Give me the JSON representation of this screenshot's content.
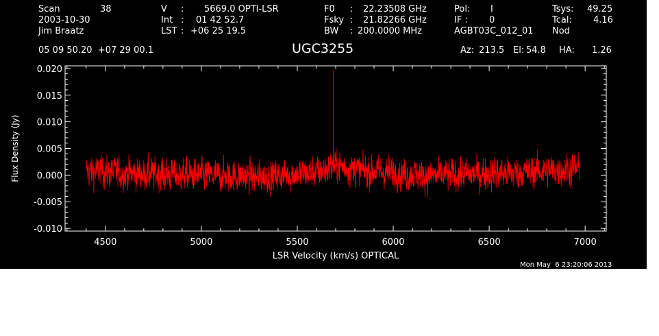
{
  "header": {
    "scan_label": "Scan",
    "scan_value": "38",
    "date": "2003-10-30",
    "observer": "Jim Braatz",
    "velocity_label": "V",
    "velocity_value": "5669.0 OPTI-LSR",
    "int_label": "Int",
    "int_value": "01 42 52.7",
    "lst_label": "LST",
    "lst_value": "+06 25 19.5",
    "f0_label": "F0",
    "f0_value": "22.23508 GHz",
    "fsky_label": "Fsky",
    "fsky_value": "21.82266 GHz",
    "bw_label": "BW",
    "bw_value": "200.0000 MHz",
    "pol_label": "Pol:",
    "pol_value": "I",
    "if_label": "IF :",
    "if_value": "0",
    "project": "AGBT03C_012_01",
    "tsys_label": "Tsys:",
    "tsys_value": "49.25",
    "tcal_label": "Tcal:",
    "tcal_value": "4.16",
    "proc": "Nod",
    "coords": "05 09 50.20  +07 29 00.1",
    "source": "UGC3255",
    "az_label": "Az:",
    "az_value": "213.5",
    "el_label": "El:",
    "el_value": "54.8",
    "ha_label": "HA:",
    "ha_value": "1.26",
    "timestamp": "Mon May  6 23:20:06 2013"
  },
  "colors": {
    "background": "#000000",
    "axes": "#ffffff",
    "series": "#ff0000"
  },
  "chart_data": {
    "type": "line",
    "xlabel": "LSR Velocity (km/s) OPTICAL",
    "ylabel": "Flux Density (Jy)",
    "xlim": [
      4290,
      7110
    ],
    "ylim": [
      -0.0105,
      0.0205
    ],
    "xticks": [
      4500,
      5000,
      5500,
      6000,
      6500,
      7000
    ],
    "xtick_labels": [
      "4500",
      "5000",
      "5500",
      "6000",
      "6500",
      "7000"
    ],
    "yticks": [
      -0.01,
      -0.005,
      0.0,
      0.005,
      0.01,
      0.015,
      0.02
    ],
    "ytick_labels": [
      "-0.010",
      "-0.005",
      "0.000",
      "0.005",
      "0.010",
      "0.015",
      "0.020"
    ],
    "series": [
      {
        "x_range": [
          4400,
          6970
        ],
        "noise_rms": 0.0021,
        "baseline_points": [
          [
            4400,
            0.0008
          ],
          [
            4700,
            0.0002
          ],
          [
            5000,
            0.0
          ],
          [
            5300,
            -0.0003
          ],
          [
            5600,
            0.0005
          ],
          [
            5700,
            0.0018
          ],
          [
            5850,
            0.0008
          ],
          [
            6200,
            -0.0001
          ],
          [
            6600,
            0.0004
          ],
          [
            6970,
            0.0012
          ]
        ],
        "features": [
          {
            "x": 5688,
            "y": 0.0196
          }
        ]
      }
    ]
  }
}
